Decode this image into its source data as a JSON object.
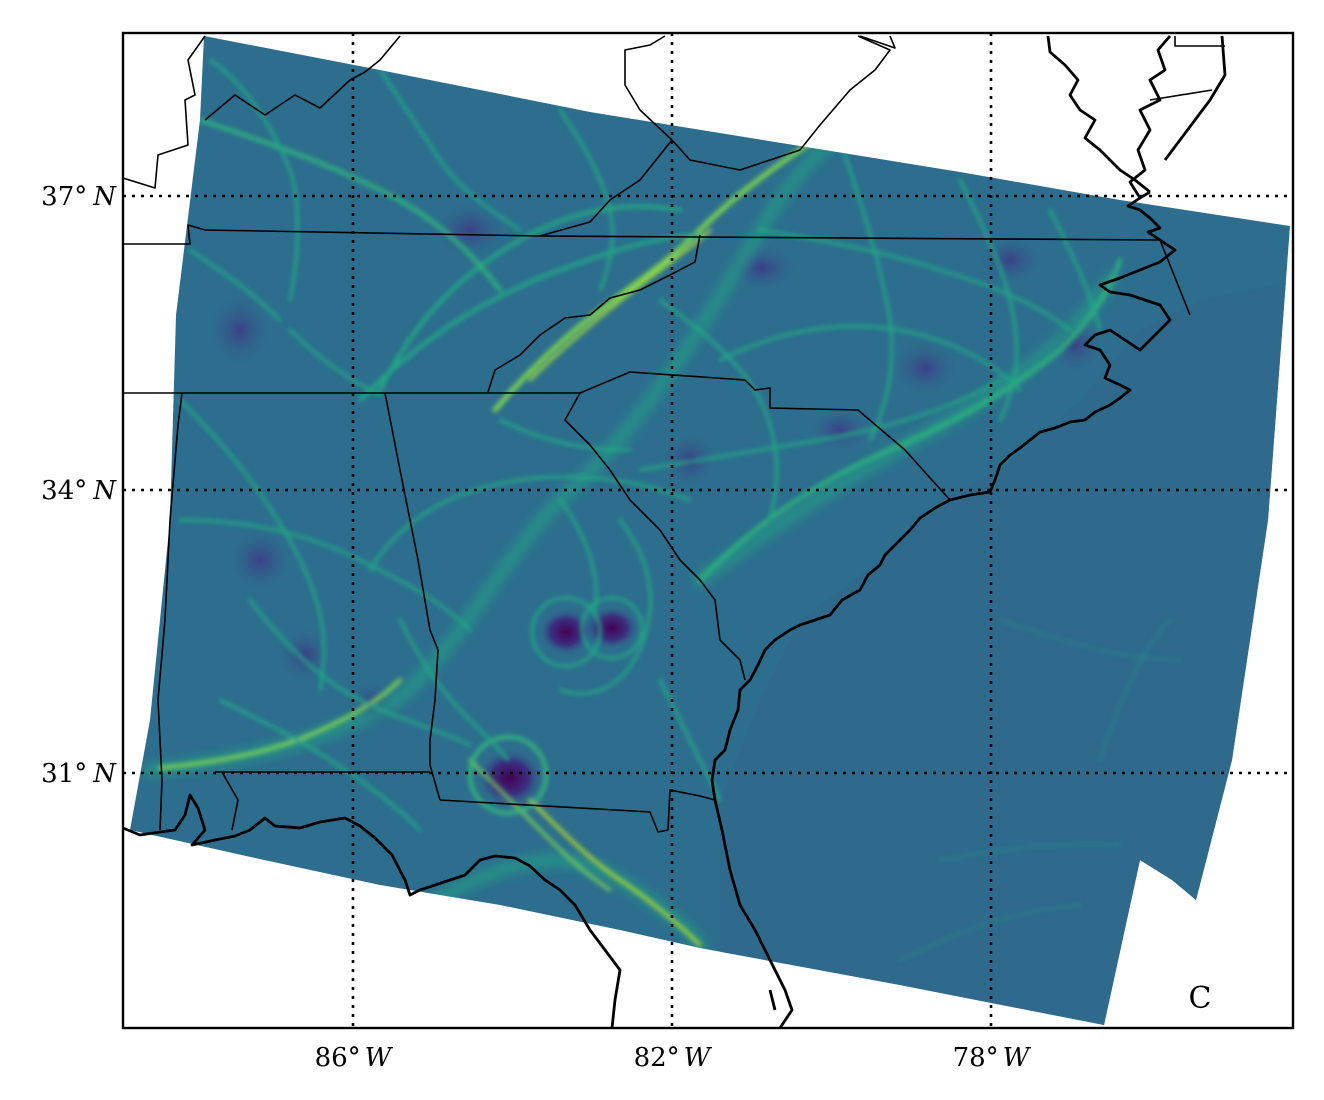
{
  "panel_label": "C",
  "colormap": "viridis",
  "colors": {
    "field_base": "#2d6e8e",
    "field_low": "#440154",
    "field_mid": "#2a788e",
    "ridge_mid": "#22a884",
    "ridge_high": "#7ad151",
    "ridge_peak": "#fde725",
    "ocean_field": "#2f6a8c",
    "grid": "#000000",
    "boundaries": "#000000"
  },
  "gridlines": {
    "style": "dotted",
    "visible": true
  },
  "latitude_labels": [
    {
      "prefix": "37",
      "unit": "N"
    },
    {
      "prefix": "34",
      "unit": "N"
    },
    {
      "prefix": "31",
      "unit": "N"
    }
  ],
  "longitude_labels": [
    {
      "prefix": "86",
      "unit": "W"
    },
    {
      "prefix": "82",
      "unit": "W"
    },
    {
      "prefix": "78",
      "unit": "W"
    }
  ],
  "degree_symbol": "°"
}
